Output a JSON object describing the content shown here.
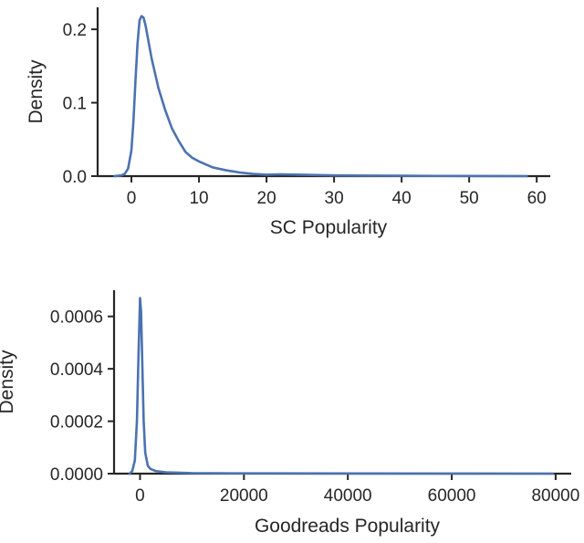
{
  "chart_data": [
    {
      "type": "line",
      "title": "",
      "xlabel": "SC Popularity",
      "ylabel": "Density",
      "xlim": [
        -5,
        62
      ],
      "ylim": [
        0,
        0.23
      ],
      "xticks": [
        0,
        10,
        20,
        30,
        40,
        50,
        60
      ],
      "yticks": [
        0.0,
        0.1,
        0.2
      ],
      "ytick_labels": [
        "0.0",
        "0.1",
        "0.2"
      ],
      "xtick_labels": [
        "0",
        "10",
        "20",
        "30",
        "40",
        "50",
        "60"
      ],
      "grid": false,
      "series": [
        {
          "color": "#4c72b0",
          "x": [
            -2.5,
            -1.5,
            -1,
            -0.5,
            0,
            0.3,
            0.6,
            0.9,
            1.2,
            1.5,
            1.8,
            2.1,
            2.5,
            3,
            3.5,
            4,
            5,
            6,
            7,
            8,
            9,
            10,
            12,
            14,
            16,
            18,
            20,
            22,
            25,
            30,
            35,
            40,
            45,
            50,
            55,
            58.5
          ],
          "y": [
            0,
            0.001,
            0.003,
            0.01,
            0.035,
            0.075,
            0.13,
            0.18,
            0.212,
            0.218,
            0.216,
            0.205,
            0.185,
            0.16,
            0.14,
            0.12,
            0.09,
            0.065,
            0.048,
            0.033,
            0.025,
            0.02,
            0.012,
            0.008,
            0.005,
            0.003,
            0.002,
            0.0025,
            0.002,
            0.001,
            0.0007,
            0.0005,
            0.0003,
            0.0002,
            0.0001,
            0
          ]
        }
      ]
    },
    {
      "type": "line",
      "title": "",
      "xlabel": "Goodreads Popularity",
      "ylabel": "Density",
      "xlim": [
        -5000,
        83000
      ],
      "ylim": [
        0,
        0.0007
      ],
      "xticks": [
        0,
        20000,
        40000,
        60000,
        80000
      ],
      "yticks": [
        0.0,
        0.0002,
        0.0004,
        0.0006
      ],
      "ytick_labels": [
        "0.0000",
        "0.0002",
        "0.0004",
        "0.0006"
      ],
      "xtick_labels": [
        "0",
        "20000",
        "40000",
        "60000",
        "80000"
      ],
      "grid": false,
      "series": [
        {
          "color": "#4c72b0",
          "x": [
            -2000,
            -1500,
            -1000,
            -600,
            -300,
            0,
            200,
            400,
            700,
            1000,
            1500,
            2000,
            3000,
            5000,
            10000,
            20000,
            40000,
            60000,
            79500
          ],
          "y": [
            0,
            1e-05,
            5e-05,
            0.0002,
            0.00045,
            0.00067,
            0.00062,
            0.00045,
            0.0002,
            8e-05,
            3e-05,
            1.8e-05,
            1e-05,
            5e-06,
            2e-06,
            1e-06,
            5e-07,
            2e-07,
            0
          ]
        }
      ]
    }
  ]
}
